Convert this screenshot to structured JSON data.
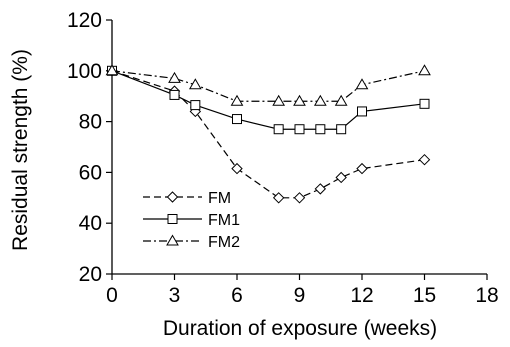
{
  "chart_data": {
    "type": "line",
    "xlabel": "Duration of exposure (weeks)",
    "ylabel": "Residual strength (%)",
    "xlim": [
      0,
      18
    ],
    "ylim": [
      20,
      120
    ],
    "xticks": [
      0,
      3,
      6,
      9,
      12,
      15,
      18
    ],
    "yticks": [
      20,
      40,
      60,
      80,
      100,
      120
    ],
    "grid": false,
    "legend_position": "lower-left",
    "series": [
      {
        "name": "FM",
        "line_style": "dashed",
        "marker": "diamond",
        "x": [
          0,
          3,
          4,
          6,
          8,
          9,
          10,
          11,
          12,
          15
        ],
        "y": [
          100,
          92,
          84,
          61.5,
          50,
          50,
          53.5,
          58,
          61.5,
          65
        ]
      },
      {
        "name": "FM1",
        "line_style": "solid",
        "marker": "square",
        "x": [
          0,
          3,
          4,
          6,
          8,
          9,
          10,
          11,
          12,
          15
        ],
        "y": [
          100,
          90.5,
          86.5,
          81,
          77,
          77,
          77,
          77,
          84,
          87
        ]
      },
      {
        "name": "FM2",
        "line_style": "dash-dot",
        "marker": "triangle",
        "x": [
          0,
          3,
          4,
          6,
          8,
          9,
          10,
          11,
          12,
          15
        ],
        "y": [
          100,
          97,
          94.5,
          88,
          88,
          88,
          88,
          88,
          94.5,
          100
        ]
      }
    ]
  }
}
